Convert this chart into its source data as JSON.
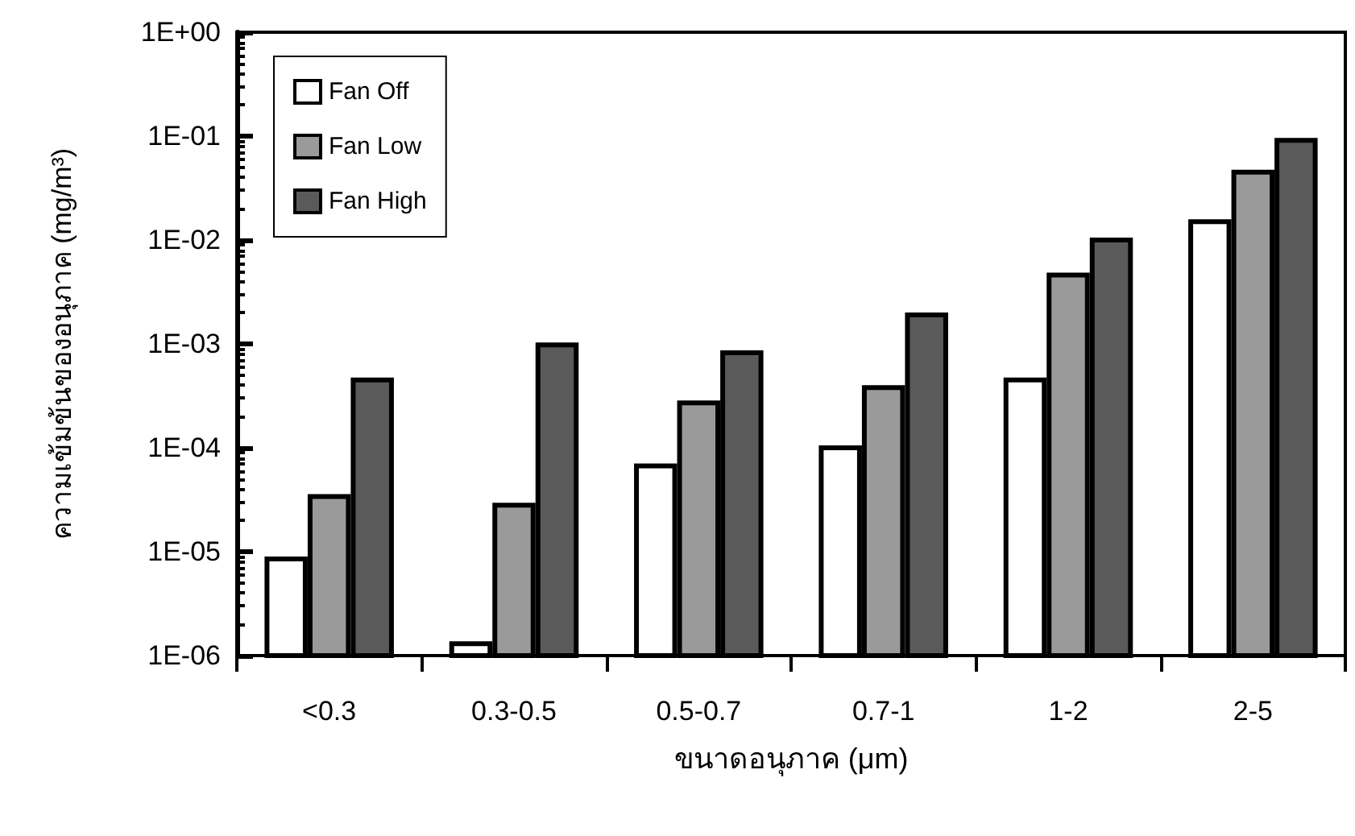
{
  "chart_data": {
    "type": "bar",
    "xlabel": "ขนาดอนุภาค (μm)",
    "ylabel": "ความเข้มข้นของอนุภาค (mg/m³)",
    "categories": [
      "<0.3",
      "0.3-0.5",
      "0.5-0.7",
      "0.7-1",
      "1-2",
      "2-5"
    ],
    "series": [
      {
        "name": "Fan Off",
        "color": "#ffffff",
        "values": [
          8.5e-06,
          1.3e-06,
          6.7e-05,
          0.0001,
          0.00045,
          0.015
        ]
      },
      {
        "name": "Fan Low",
        "color": "#9a9a9a",
        "values": [
          3.4e-05,
          2.8e-05,
          0.00027,
          0.00038,
          0.0046,
          0.045
        ]
      },
      {
        "name": "Fan High",
        "color": "#5a5a5a",
        "values": [
          0.00045,
          0.00098,
          0.00082,
          0.0019,
          0.01,
          0.091
        ]
      }
    ],
    "log": "y",
    "ylim": [
      1e-06,
      1
    ],
    "yticks": [
      {
        "value": 1e-06,
        "label": "1E-06"
      },
      {
        "value": 1e-05,
        "label": "1E-05"
      },
      {
        "value": 0.0001,
        "label": "1E-04"
      },
      {
        "value": 0.001,
        "label": "1E-03"
      },
      {
        "value": 0.01,
        "label": "1E-02"
      },
      {
        "value": 0.1,
        "label": "1E-01"
      },
      {
        "value": 1,
        "label": "1E+00"
      }
    ],
    "grid": false,
    "legend": "top left"
  }
}
